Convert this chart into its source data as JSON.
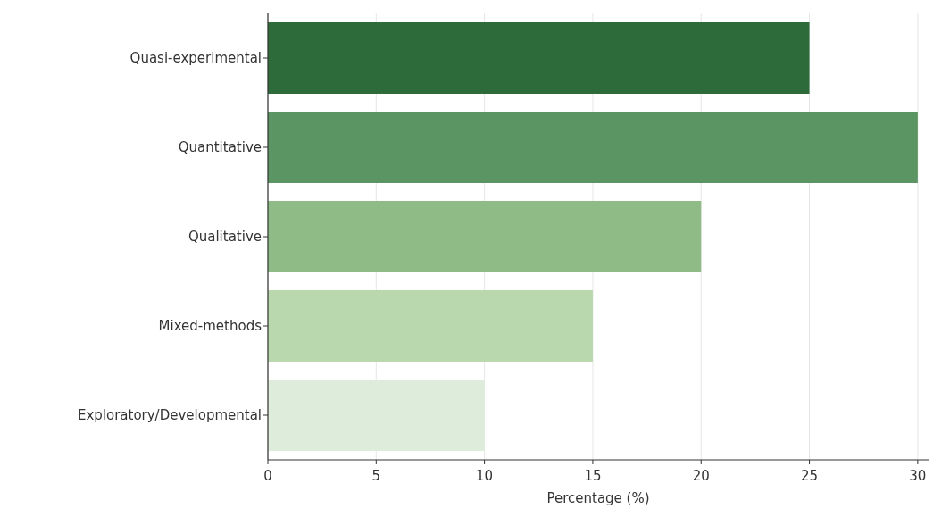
{
  "chart_data": {
    "type": "bar",
    "orientation": "horizontal",
    "xlabel": "Percentage (%)",
    "categories": [
      "Quasi-experimental",
      "Quantitative",
      "Qualitative",
      "Mixed-methods",
      "Exploratory/Developmental"
    ],
    "values": [
      25,
      30,
      20,
      15,
      10
    ],
    "colors": [
      "#2e6b3a",
      "#5a9563",
      "#8fbb86",
      "#b9d8ae",
      "#deeddb"
    ],
    "xlim": [
      0,
      30.5
    ],
    "xticks": [
      0,
      5,
      10,
      15,
      20,
      25,
      30
    ],
    "grid": "x"
  }
}
